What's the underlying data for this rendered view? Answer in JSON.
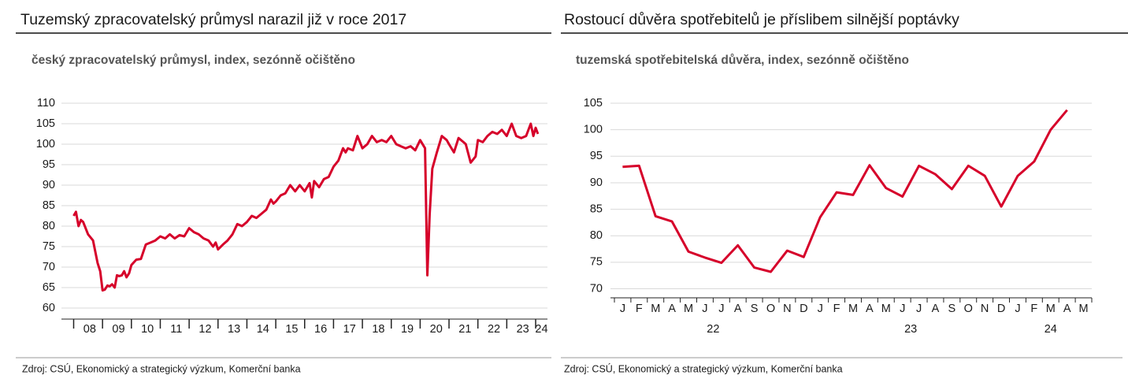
{
  "chart_data": [
    {
      "type": "line",
      "title": "Tuzemský zpracovatelský průmysl narazil již v roce 2017",
      "subtitle": "český zpracovatelský průmysl, index, sezónně očištěno",
      "source": "Zdroj: CSÚ, Ekonomický a strategický výzkum, Komerční banka",
      "color": "#d6002a",
      "x": [
        2008.0,
        2008.08,
        2008.17,
        2008.25,
        2008.33,
        2008.5,
        2008.67,
        2008.83,
        2008.92,
        2009.0,
        2009.08,
        2009.17,
        2009.25,
        2009.33,
        2009.42,
        2009.5,
        2009.58,
        2009.67,
        2009.75,
        2009.83,
        2009.92,
        2010.0,
        2010.17,
        2010.33,
        2010.5,
        2010.67,
        2010.83,
        2011.0,
        2011.17,
        2011.33,
        2011.5,
        2011.67,
        2011.83,
        2012.0,
        2012.17,
        2012.33,
        2012.5,
        2012.67,
        2012.83,
        2012.92,
        2013.0,
        2013.17,
        2013.33,
        2013.5,
        2013.67,
        2013.83,
        2014.0,
        2014.17,
        2014.33,
        2014.5,
        2014.67,
        2014.83,
        2014.92,
        2015.0,
        2015.17,
        2015.33,
        2015.5,
        2015.67,
        2015.83,
        2016.0,
        2016.17,
        2016.25,
        2016.33,
        2016.5,
        2016.67,
        2016.83,
        2017.0,
        2017.17,
        2017.33,
        2017.42,
        2017.5,
        2017.67,
        2017.83,
        2018.0,
        2018.17,
        2018.33,
        2018.5,
        2018.67,
        2018.83,
        2019.0,
        2019.17,
        2019.33,
        2019.5,
        2019.67,
        2019.83,
        2020.0,
        2020.17,
        2020.25,
        2020.33,
        2020.42,
        2020.58,
        2020.75,
        2020.92,
        2021.0,
        2021.17,
        2021.33,
        2021.5,
        2021.58,
        2021.75,
        2021.92,
        2022.0,
        2022.17,
        2022.33,
        2022.5,
        2022.67,
        2022.83,
        2023.0,
        2023.17,
        2023.33,
        2023.5,
        2023.67,
        2023.83,
        2023.92,
        2024.0,
        2024.08
      ],
      "values": [
        82.5,
        83.5,
        80,
        81.5,
        81,
        78,
        76.5,
        71,
        69,
        64.3,
        64.5,
        65.5,
        65.3,
        65.8,
        65,
        68,
        67.8,
        68,
        69,
        67.5,
        68.5,
        70.5,
        71.8,
        72,
        75.5,
        76,
        76.5,
        77.5,
        77,
        78,
        77,
        77.8,
        77.5,
        79.5,
        78.5,
        78,
        77,
        76.5,
        75,
        76,
        74.3,
        75.5,
        76.5,
        78,
        80.5,
        80,
        81,
        82.5,
        82,
        83,
        84,
        86.5,
        85.5,
        86,
        87.5,
        88,
        90,
        88.5,
        90,
        88.5,
        90.5,
        87,
        91,
        89.5,
        91.5,
        92,
        94.5,
        96,
        99,
        98,
        99,
        98.5,
        102,
        99,
        100,
        102,
        100.5,
        101,
        100.5,
        102,
        100,
        99.5,
        99,
        99.5,
        98.5,
        101,
        99,
        68,
        83,
        94,
        98,
        102,
        101,
        100,
        98,
        101.5,
        100.5,
        100,
        95.5,
        97,
        101,
        100.5,
        102,
        103,
        102.5,
        103.5,
        102,
        105,
        102,
        101.5,
        102,
        105,
        102,
        104,
        102.5
      ],
      "xlim": [
        2007.85,
        2024.3
      ],
      "xticks": [
        {
          "value": 2008,
          "label": "08"
        },
        {
          "value": 2009,
          "label": "09"
        },
        {
          "value": 2010,
          "label": "10"
        },
        {
          "value": 2011,
          "label": "11"
        },
        {
          "value": 2012,
          "label": "12"
        },
        {
          "value": 2013,
          "label": "13"
        },
        {
          "value": 2014,
          "label": "14"
        },
        {
          "value": 2015,
          "label": "15"
        },
        {
          "value": 2016,
          "label": "16"
        },
        {
          "value": 2017,
          "label": "17"
        },
        {
          "value": 2018,
          "label": "18"
        },
        {
          "value": 2019,
          "label": "19"
        },
        {
          "value": 2020,
          "label": "20"
        },
        {
          "value": 2021,
          "label": "21"
        },
        {
          "value": 2022,
          "label": "22"
        },
        {
          "value": 2023,
          "label": "23"
        },
        {
          "value": 2024,
          "label": "24"
        }
      ],
      "ylim": [
        57.3,
        110
      ],
      "yticks": [
        60,
        65,
        70,
        75,
        80,
        85,
        90,
        95,
        100,
        105,
        110
      ],
      "grid": true
    },
    {
      "type": "line",
      "title": "Rostoucí důvěra spotřebitelů je příslibem silnější poptávky",
      "subtitle": "tuzemská spotřebitelská důvěra, index, sezónně očištěno",
      "source": "Zdroj: CSÚ, Ekonomický a strategický výzkum, Komerční banka",
      "color": "#d6002a",
      "categories": [
        "J",
        "F",
        "M",
        "A",
        "M",
        "J",
        "J",
        "A",
        "S",
        "O",
        "N",
        "D",
        "J",
        "F",
        "M",
        "A",
        "M",
        "J",
        "J",
        "A",
        "S",
        "O",
        "N",
        "D",
        "J",
        "F",
        "M",
        "A",
        "M"
      ],
      "category_groups": [
        "22",
        "23",
        "24"
      ],
      "values": [
        93,
        93.2,
        83.7,
        82.7,
        77,
        75.9,
        74.9,
        78.2,
        74,
        73.2,
        77.2,
        76,
        83.5,
        88.2,
        87.7,
        93.3,
        89,
        87.4,
        93.2,
        91.6,
        88.8,
        93.2,
        91.3,
        85.5,
        91.3,
        94,
        100,
        103.7,
        null
      ],
      "ylim": [
        68.3,
        105
      ],
      "yticks": [
        70,
        75,
        80,
        85,
        90,
        95,
        100,
        105
      ],
      "grid": true
    }
  ]
}
